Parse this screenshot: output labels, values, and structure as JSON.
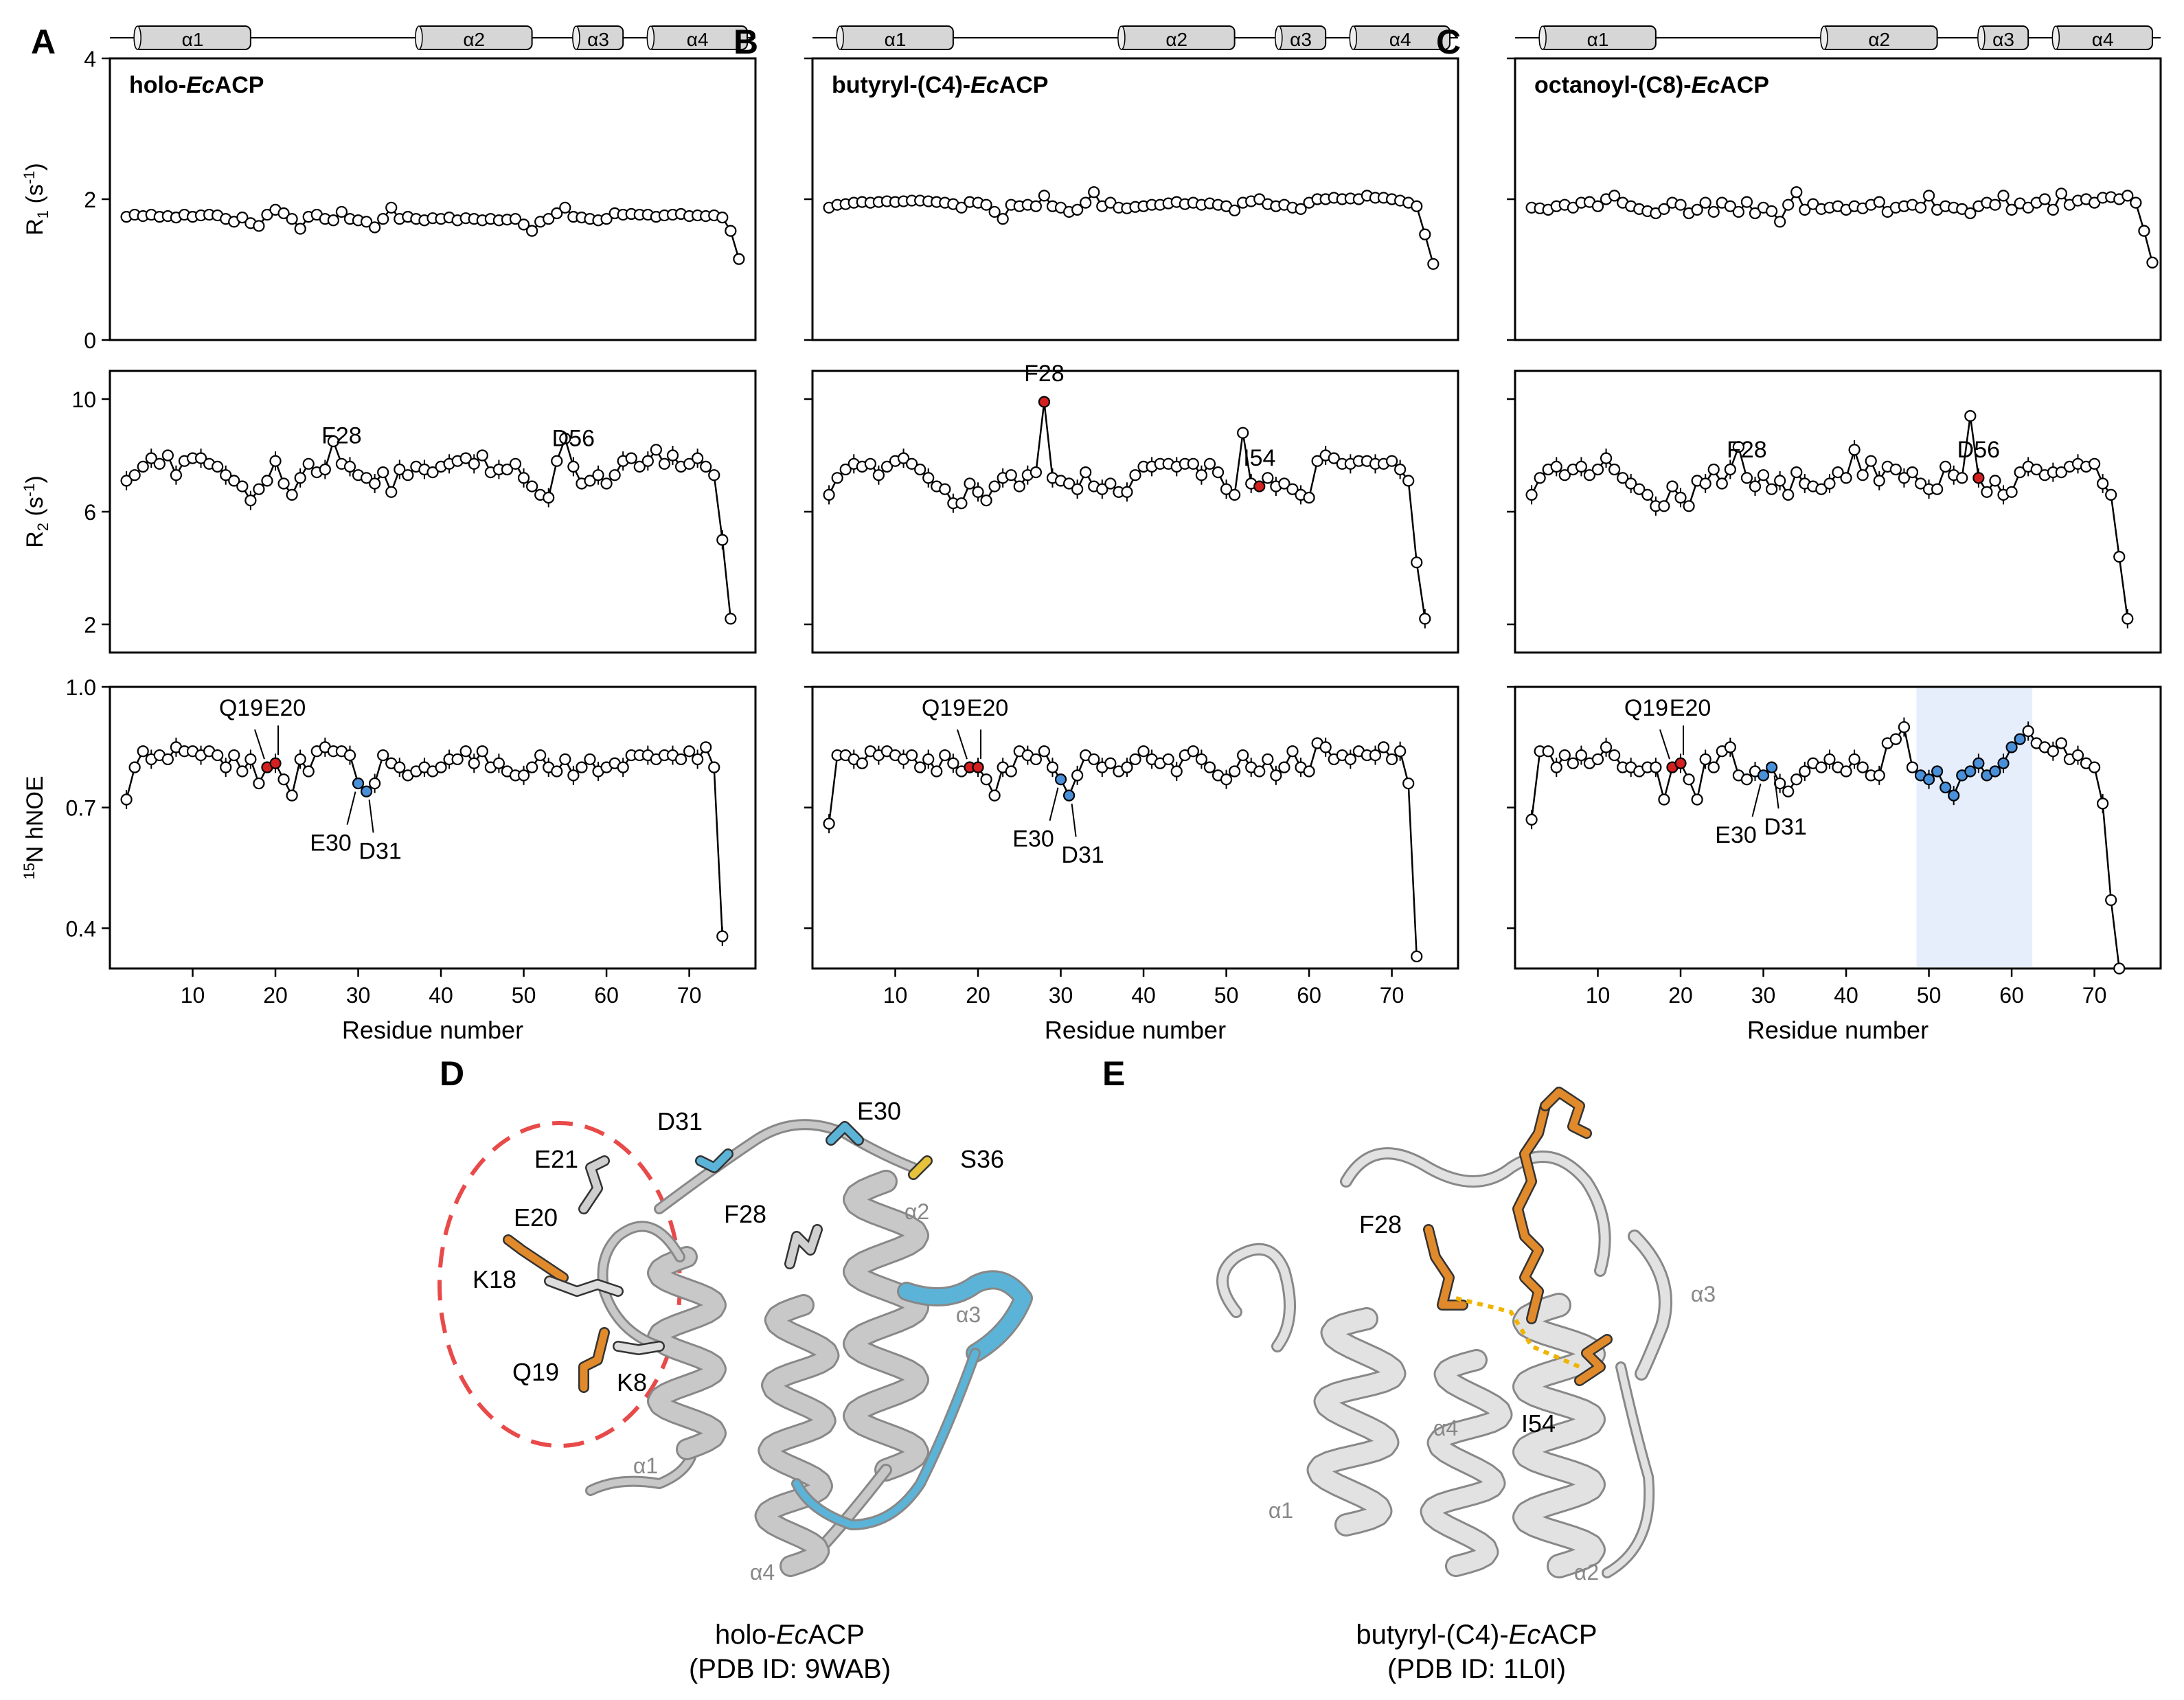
{
  "panels": [
    {
      "letter": "A",
      "title_prefix": "holo-",
      "title_em": "Ec",
      "title_suffix": "ACP"
    },
    {
      "letter": "B",
      "title_prefix": "butyryl-(C4)-",
      "title_em": "Ec",
      "title_suffix": "ACP"
    },
    {
      "letter": "C",
      "title_prefix": "octanoyl-(C8)-",
      "title_em": "Ec",
      "title_suffix": "ACP"
    }
  ],
  "helices": [
    {
      "label": "α1",
      "start": 3,
      "end": 17
    },
    {
      "label": "α2",
      "start": 37,
      "end": 51
    },
    {
      "label": "α3",
      "start": 56,
      "end": 62
    },
    {
      "label": "α4",
      "start": 65,
      "end": 77
    }
  ],
  "x_axis": {
    "label": "Residue number",
    "ticks": [
      10,
      20,
      30,
      40,
      50,
      60,
      70
    ],
    "range": [
      0,
      78
    ]
  },
  "rows": [
    {
      "key": "r1",
      "ylabel_main": "R",
      "ylabel_sub": "1",
      "ylabel_unit": " (s",
      "ylabel_sup": "-1",
      "ylabel_end": ")",
      "ylim": [
        0,
        4
      ],
      "ticks": [
        0,
        2,
        4
      ]
    },
    {
      "key": "r2",
      "ylabel_main": "R",
      "ylabel_sub": "2",
      "ylabel_unit": " (s",
      "ylabel_sup": "-1",
      "ylabel_end": ")",
      "ylim": [
        1,
        11
      ],
      "ticks": [
        2,
        6,
        10
      ]
    },
    {
      "key": "noe",
      "ylabel_pre_sup": "15",
      "ylabel_main": "N hNOE",
      "ylim": [
        0.3,
        1.0
      ],
      "ticks": [
        0.4,
        0.7,
        1.0
      ]
    }
  ],
  "chart_data": [
    {
      "type": "line",
      "panel": "A",
      "row": "r1",
      "x_start": 2,
      "values": [
        1.75,
        1.78,
        1.76,
        1.78,
        1.75,
        1.76,
        1.74,
        1.78,
        1.75,
        1.77,
        1.78,
        1.77,
        1.72,
        1.68,
        1.74,
        1.66,
        1.62,
        1.78,
        1.85,
        1.8,
        1.72,
        1.58,
        1.75,
        1.78,
        1.72,
        1.7,
        1.82,
        1.72,
        1.7,
        1.68,
        1.6,
        1.72,
        1.88,
        1.72,
        1.75,
        1.72,
        1.7,
        1.73,
        1.72,
        1.74,
        1.7,
        1.73,
        1.72,
        1.7,
        1.72,
        1.7,
        1.71,
        1.72,
        1.64,
        1.55,
        1.68,
        1.72,
        1.8,
        1.88,
        1.75,
        1.74,
        1.72,
        1.7,
        1.72,
        1.8,
        1.78,
        1.79,
        1.78,
        1.78,
        1.75,
        1.77,
        1.78,
        1.79,
        1.76,
        1.77,
        1.76,
        1.77,
        1.74,
        1.55,
        1.15
      ],
      "highlights": [],
      "annotations": []
    },
    {
      "type": "line",
      "panel": "A",
      "row": "r2",
      "x_start": 2,
      "values": [
        7.1,
        7.3,
        7.6,
        7.9,
        7.7,
        8.0,
        7.3,
        7.8,
        7.9,
        7.9,
        7.7,
        7.6,
        7.3,
        7.1,
        6.9,
        6.4,
        6.8,
        7.1,
        7.8,
        7.0,
        6.6,
        7.2,
        7.7,
        7.4,
        7.5,
        8.5,
        7.7,
        7.6,
        7.3,
        7.2,
        7.0,
        7.4,
        6.7,
        7.5,
        7.3,
        7.6,
        7.5,
        7.4,
        7.6,
        7.7,
        7.8,
        7.9,
        7.7,
        8.0,
        7.4,
        7.5,
        7.5,
        7.7,
        7.2,
        6.9,
        6.6,
        6.5,
        7.8,
        8.6,
        7.6,
        7.0,
        7.1,
        7.3,
        7.0,
        7.3,
        7.8,
        7.9,
        7.6,
        7.8,
        8.2,
        7.7,
        8.0,
        7.6,
        7.7,
        7.9,
        7.6,
        7.3,
        5.0,
        2.2
      ],
      "highlights": [],
      "annotations": [
        {
          "label": "F28",
          "x": 28
        },
        {
          "label": "D56",
          "x": 56
        }
      ]
    },
    {
      "type": "line",
      "panel": "A",
      "row": "noe",
      "x_start": 2,
      "values": [
        0.72,
        0.8,
        0.84,
        0.82,
        0.83,
        0.82,
        0.85,
        0.84,
        0.84,
        0.83,
        0.84,
        0.83,
        0.8,
        0.83,
        0.79,
        0.82,
        0.76,
        0.8,
        0.81,
        0.77,
        0.73,
        0.82,
        0.79,
        0.84,
        0.85,
        0.84,
        0.84,
        0.83,
        0.76,
        0.74,
        0.76,
        0.83,
        0.81,
        0.8,
        0.78,
        0.79,
        0.8,
        0.79,
        0.8,
        0.82,
        0.82,
        0.84,
        0.81,
        0.84,
        0.8,
        0.81,
        0.79,
        0.78,
        0.78,
        0.8,
        0.83,
        0.8,
        0.79,
        0.82,
        0.78,
        0.8,
        0.82,
        0.79,
        0.8,
        0.81,
        0.8,
        0.83,
        0.83,
        0.83,
        0.82,
        0.83,
        0.83,
        0.82,
        0.84,
        0.82,
        0.85,
        0.8,
        0.38
      ],
      "highlights": [
        {
          "x": 19,
          "color": "#d42020"
        },
        {
          "x": 20,
          "color": "#d42020"
        },
        {
          "x": 30,
          "color": "#4a90d9"
        },
        {
          "x": 31,
          "color": "#4a90d9"
        }
      ],
      "annotations": [
        {
          "label": "Q19",
          "x": 19,
          "dir": "up"
        },
        {
          "label": "E20",
          "x": 20,
          "dir": "up"
        },
        {
          "label": "E30",
          "x": 30,
          "dir": "down"
        },
        {
          "label": "D31",
          "x": 31,
          "dir": "down"
        }
      ]
    },
    {
      "type": "line",
      "panel": "B",
      "row": "r1",
      "x_start": 2,
      "values": [
        1.88,
        1.92,
        1.93,
        1.95,
        1.96,
        1.95,
        1.96,
        1.97,
        1.96,
        1.97,
        1.98,
        1.98,
        1.97,
        1.96,
        1.95,
        1.93,
        1.88,
        1.96,
        1.95,
        1.92,
        1.82,
        1.72,
        1.92,
        1.9,
        1.92,
        1.9,
        2.05,
        1.9,
        1.88,
        1.82,
        1.85,
        1.95,
        2.1,
        1.9,
        1.95,
        1.88,
        1.87,
        1.89,
        1.9,
        1.92,
        1.92,
        1.94,
        1.96,
        1.93,
        1.95,
        1.92,
        1.94,
        1.92,
        1.9,
        1.84,
        1.95,
        1.97,
        2.0,
        1.93,
        1.9,
        1.92,
        1.88,
        1.86,
        1.95,
        2.0,
        2.0,
        2.02,
        2.0,
        2.01,
        2.0,
        2.05,
        2.02,
        2.02,
        2.0,
        1.98,
        1.95,
        1.9,
        1.5,
        1.08
      ],
      "highlights": [],
      "annotations": []
    },
    {
      "type": "line",
      "panel": "B",
      "row": "r2",
      "x_start": 2,
      "values": [
        6.6,
        7.2,
        7.5,
        7.7,
        7.6,
        7.7,
        7.3,
        7.6,
        7.8,
        7.9,
        7.7,
        7.5,
        7.2,
        6.9,
        6.8,
        6.3,
        6.3,
        7.0,
        6.7,
        6.4,
        6.9,
        7.2,
        7.3,
        6.9,
        7.3,
        7.4,
        9.9,
        7.2,
        7.1,
        7.0,
        6.8,
        7.4,
        6.9,
        6.8,
        7.0,
        6.7,
        6.7,
        7.3,
        7.6,
        7.6,
        7.7,
        7.7,
        7.6,
        7.7,
        7.7,
        7.3,
        7.7,
        7.4,
        6.8,
        6.6,
        8.8,
        7.0,
        6.9,
        7.2,
        6.9,
        7.0,
        6.8,
        6.6,
        6.5,
        7.8,
        8.0,
        7.9,
        7.7,
        7.7,
        7.8,
        7.8,
        7.7,
        7.7,
        7.8,
        7.5,
        7.1,
        4.2,
        2.2
      ],
      "highlights": [
        {
          "x": 28,
          "color": "#d42020"
        },
        {
          "x": 54,
          "color": "#d42020"
        }
      ],
      "annotations": [
        {
          "label": "F28",
          "x": 28
        },
        {
          "label": "I54",
          "x": 54
        }
      ]
    },
    {
      "type": "line",
      "panel": "B",
      "row": "noe",
      "x_start": 2,
      "values": [
        0.66,
        0.83,
        0.83,
        0.82,
        0.81,
        0.84,
        0.83,
        0.84,
        0.83,
        0.82,
        0.83,
        0.8,
        0.82,
        0.79,
        0.83,
        0.81,
        0.79,
        0.8,
        0.8,
        0.77,
        0.73,
        0.8,
        0.79,
        0.84,
        0.83,
        0.82,
        0.84,
        0.8,
        0.77,
        0.73,
        0.78,
        0.83,
        0.82,
        0.8,
        0.81,
        0.79,
        0.8,
        0.82,
        0.84,
        0.82,
        0.81,
        0.82,
        0.79,
        0.83,
        0.84,
        0.82,
        0.8,
        0.78,
        0.77,
        0.79,
        0.83,
        0.8,
        0.79,
        0.82,
        0.78,
        0.8,
        0.84,
        0.8,
        0.79,
        0.86,
        0.85,
        0.82,
        0.83,
        0.82,
        0.84,
        0.83,
        0.83,
        0.85,
        0.82,
        0.84,
        0.76,
        0.33
      ],
      "highlights": [
        {
          "x": 19,
          "color": "#d42020"
        },
        {
          "x": 20,
          "color": "#d42020"
        },
        {
          "x": 30,
          "color": "#4a90d9"
        },
        {
          "x": 31,
          "color": "#4a90d9"
        }
      ],
      "annotations": [
        {
          "label": "Q19",
          "x": 19,
          "dir": "up"
        },
        {
          "label": "E20",
          "x": 20,
          "dir": "up"
        },
        {
          "label": "E30",
          "x": 30,
          "dir": "down"
        },
        {
          "label": "D31",
          "x": 31,
          "dir": "down"
        }
      ]
    },
    {
      "type": "line",
      "panel": "C",
      "row": "r1",
      "x_start": 2,
      "values": [
        1.88,
        1.87,
        1.85,
        1.9,
        1.92,
        1.88,
        1.95,
        1.96,
        1.9,
        2.0,
        2.05,
        1.95,
        1.9,
        1.86,
        1.83,
        1.8,
        1.86,
        1.95,
        1.92,
        1.8,
        1.85,
        1.95,
        1.82,
        1.95,
        1.9,
        1.82,
        1.96,
        1.8,
        1.88,
        1.83,
        1.68,
        1.92,
        2.1,
        1.85,
        1.93,
        1.86,
        1.88,
        1.9,
        1.85,
        1.9,
        1.87,
        1.92,
        1.96,
        1.82,
        1.88,
        1.9,
        1.92,
        1.88,
        2.05,
        1.85,
        1.9,
        1.88,
        1.86,
        1.8,
        1.9,
        1.95,
        1.92,
        2.05,
        1.85,
        1.94,
        1.88,
        1.95,
        2.0,
        1.85,
        2.08,
        1.92,
        1.98,
        2.0,
        1.95,
        2.02,
        2.03,
        2.0,
        2.05,
        1.95,
        1.55,
        1.1
      ],
      "highlights": [],
      "annotations": []
    },
    {
      "type": "line",
      "panel": "C",
      "row": "r2",
      "x_start": 2,
      "values": [
        6.6,
        7.2,
        7.5,
        7.6,
        7.3,
        7.5,
        7.6,
        7.3,
        7.5,
        7.9,
        7.5,
        7.2,
        7.0,
        6.8,
        6.6,
        6.2,
        6.2,
        6.9,
        6.5,
        6.2,
        7.1,
        7.0,
        7.5,
        7.0,
        7.5,
        8.3,
        7.2,
        6.9,
        7.3,
        6.8,
        7.1,
        6.6,
        7.4,
        7.0,
        6.9,
        6.8,
        7.0,
        7.4,
        7.2,
        8.2,
        7.3,
        7.8,
        7.1,
        7.6,
        7.5,
        7.2,
        7.4,
        7.0,
        6.8,
        6.8,
        7.6,
        7.3,
        7.2,
        9.4,
        7.2,
        6.7,
        7.1,
        6.6,
        6.7,
        7.4,
        7.6,
        7.5,
        7.3,
        7.4,
        7.4,
        7.6,
        7.7,
        7.6,
        7.7,
        7.0,
        6.6,
        4.4,
        2.2
      ],
      "highlights": [
        {
          "x": 56,
          "color": "#d42020"
        }
      ],
      "annotations": [
        {
          "label": "F28",
          "x": 28
        },
        {
          "label": "D56",
          "x": 56
        }
      ]
    },
    {
      "type": "line",
      "panel": "C",
      "row": "noe",
      "x_start": 2,
      "values": [
        0.67,
        0.84,
        0.84,
        0.8,
        0.83,
        0.81,
        0.83,
        0.81,
        0.82,
        0.85,
        0.83,
        0.8,
        0.8,
        0.79,
        0.8,
        0.8,
        0.72,
        0.8,
        0.81,
        0.77,
        0.72,
        0.82,
        0.8,
        0.84,
        0.85,
        0.78,
        0.77,
        0.79,
        0.78,
        0.8,
        0.76,
        0.74,
        0.77,
        0.79,
        0.81,
        0.8,
        0.82,
        0.8,
        0.79,
        0.82,
        0.8,
        0.78,
        0.78,
        0.86,
        0.87,
        0.9,
        0.8,
        0.78,
        0.77,
        0.79,
        0.75,
        0.73,
        0.78,
        0.79,
        0.81,
        0.78,
        0.79,
        0.81,
        0.85,
        0.87,
        0.89,
        0.86,
        0.85,
        0.84,
        0.86,
        0.82,
        0.83,
        0.81,
        0.8,
        0.71,
        0.47,
        0.3
      ],
      "highlights": [
        {
          "x": 19,
          "color": "#d42020"
        },
        {
          "x": 20,
          "color": "#d42020"
        },
        {
          "x": 30,
          "color": "#4a90d9"
        },
        {
          "x": 31,
          "color": "#4a90d9"
        },
        {
          "x": 49,
          "color": "#4a90d9"
        },
        {
          "x": 50,
          "color": "#4a90d9"
        },
        {
          "x": 51,
          "color": "#4a90d9"
        },
        {
          "x": 52,
          "color": "#4a90d9"
        },
        {
          "x": 53,
          "color": "#4a90d9"
        },
        {
          "x": 54,
          "color": "#4a90d9"
        },
        {
          "x": 55,
          "color": "#4a90d9"
        },
        {
          "x": 56,
          "color": "#4a90d9"
        },
        {
          "x": 57,
          "color": "#4a90d9"
        },
        {
          "x": 58,
          "color": "#4a90d9"
        },
        {
          "x": 59,
          "color": "#4a90d9"
        },
        {
          "x": 60,
          "color": "#4a90d9"
        },
        {
          "x": 61,
          "color": "#4a90d9"
        }
      ],
      "shade": [
        48.5,
        62.5
      ],
      "annotations": [
        {
          "label": "Q19",
          "x": 19,
          "dir": "up"
        },
        {
          "label": "E20",
          "x": 20,
          "dir": "up"
        },
        {
          "label": "E30",
          "x": 30,
          "dir": "down"
        },
        {
          "label": "D31",
          "x": 31,
          "dir": "down"
        }
      ]
    }
  ],
  "structures": {
    "D": {
      "letter": "D",
      "caption_prefix": "holo-",
      "caption_em": "Ec",
      "caption_suffix": "ACP",
      "pdb": "(PDB ID: 9WAB)",
      "labels": [
        "D31",
        "E30",
        "S36",
        "E21",
        "E20",
        "F28",
        "K18",
        "Q19",
        "K8",
        "α1",
        "α2",
        "α3",
        "α4"
      ]
    },
    "E": {
      "letter": "E",
      "caption_prefix": "butyryl-(C4)-",
      "caption_em": "Ec",
      "caption_suffix": "ACP",
      "pdb": "(PDB ID: 1L0I)",
      "labels": [
        "F28",
        "I54",
        "α1",
        "α2",
        "α3",
        "α4"
      ]
    }
  },
  "colors": {
    "highlight_red": "#d42020",
    "highlight_blue": "#4a90d9",
    "shade": "#e6eefc",
    "ribbon": "#c8c8c8",
    "cyan": "#5bb4d8",
    "orange": "#e08a2c",
    "dashed": "#e84a4a"
  }
}
